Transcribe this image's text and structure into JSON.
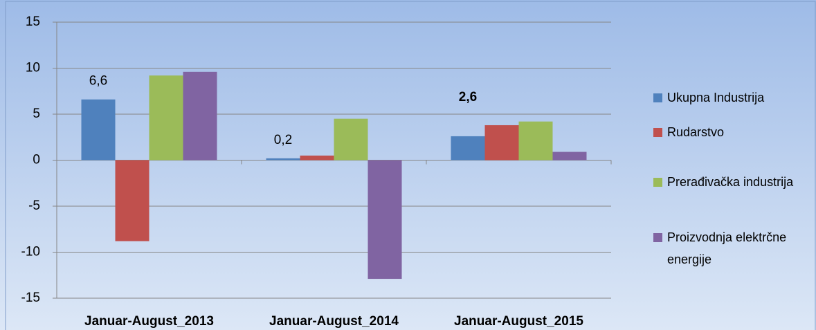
{
  "chart_data": {
    "type": "bar",
    "categories": [
      "Januar-August_2013",
      "Januar-August_2014",
      "Januar-August_2015"
    ],
    "series": [
      {
        "name": "Ukupna Industrija",
        "color": "#4f81bd",
        "values": [
          6.6,
          0.2,
          2.6
        ],
        "value_labels": [
          "6,6",
          "0,2",
          "2,6"
        ],
        "value_label_colors": [
          "#000000",
          "#000000",
          "#ff0000"
        ],
        "value_label_weights": [
          "normal",
          "normal",
          "bold"
        ]
      },
      {
        "name": "Rudarstvo",
        "color": "#c0504d",
        "values": [
          -8.8,
          0.5,
          3.8
        ]
      },
      {
        "name": "Prerađivačka industrija",
        "color": "#9bbb59",
        "values": [
          9.2,
          4.5,
          4.2
        ]
      },
      {
        "name": "Proizvodnja elektrčne energije",
        "color": "#8064a2",
        "values": [
          9.6,
          -12.9,
          0.9
        ]
      }
    ],
    "ylim": [
      -15,
      15
    ],
    "yticks": [
      -15,
      -10,
      -5,
      0,
      5,
      10,
      15
    ],
    "grid": true,
    "legend": "right"
  }
}
